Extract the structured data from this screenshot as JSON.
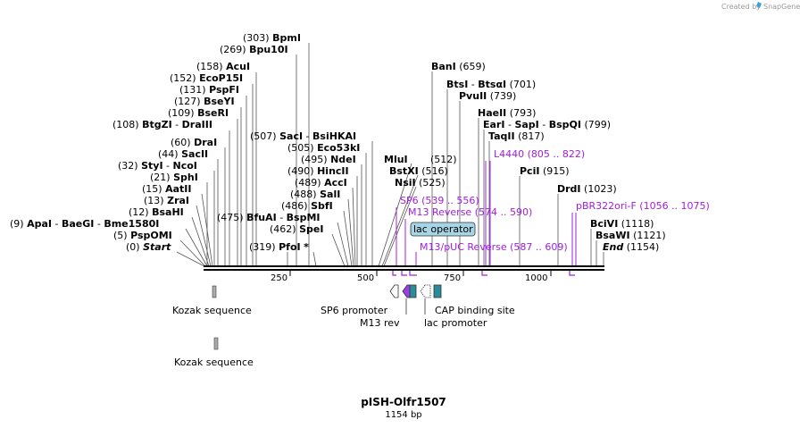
{
  "header": {
    "credit_prefix": "Created by",
    "credit_brand": "SnapGene"
  },
  "map": {
    "name": "pISH-Olfr1507",
    "length_label": "1154 bp",
    "ticks": [
      "250",
      "500",
      "750",
      "1000"
    ],
    "sites": [
      {
        "pos": "(303)",
        "names": [
          "BpmI"
        ]
      },
      {
        "pos": "(269)",
        "names": [
          "Bpu10I"
        ]
      },
      {
        "pos": "(158)",
        "names": [
          "AcuI"
        ]
      },
      {
        "pos": "(152)",
        "names": [
          "EcoP15I"
        ]
      },
      {
        "pos": "(131)",
        "names": [
          "PspFI"
        ]
      },
      {
        "pos": "(127)",
        "names": [
          "BseYI"
        ]
      },
      {
        "pos": "(109)",
        "names": [
          "BseRI"
        ]
      },
      {
        "pos": "(108)",
        "names": [
          "BtgZI",
          "DraIII"
        ]
      },
      {
        "pos": "(60)",
        "names": [
          "DraI"
        ]
      },
      {
        "pos": "(44)",
        "names": [
          "SacII"
        ]
      },
      {
        "pos": "(32)",
        "names": [
          "StyI",
          "NcoI"
        ]
      },
      {
        "pos": "(21)",
        "names": [
          "SphI"
        ]
      },
      {
        "pos": "(15)",
        "names": [
          "AatII"
        ]
      },
      {
        "pos": "(13)",
        "names": [
          "ZraI"
        ]
      },
      {
        "pos": "(12)",
        "names": [
          "BsaHI"
        ]
      },
      {
        "pos": "(9)",
        "names": [
          "ApaI",
          "BaeGI",
          "Bme1580I"
        ]
      },
      {
        "pos": "(5)",
        "names": [
          "PspOMI"
        ]
      },
      {
        "pos": "(0)",
        "names": [
          "Start"
        ]
      },
      {
        "pos": "(507)",
        "names": [
          "SacI",
          "BsiHKAI"
        ]
      },
      {
        "pos": "(505)",
        "names": [
          "Eco53kI"
        ]
      },
      {
        "pos": "(495)",
        "names": [
          "NdeI"
        ]
      },
      {
        "pos": "(490)",
        "names": [
          "HincII"
        ]
      },
      {
        "pos": "(489)",
        "names": [
          "AccI"
        ]
      },
      {
        "pos": "(488)",
        "names": [
          "SalI"
        ]
      },
      {
        "pos": "(486)",
        "names": [
          "SbfI"
        ]
      },
      {
        "pos": "(475)",
        "names": [
          "BfuAI",
          "BspMI"
        ]
      },
      {
        "pos": "(462)",
        "names": [
          "SpeI"
        ]
      },
      {
        "pos": "(319)",
        "names": [
          "PfoI",
          "*"
        ]
      },
      {
        "pos": "(659)",
        "names": [
          "BanI"
        ]
      },
      {
        "pos": "(701)",
        "names": [
          "BtsI",
          "BtsαI"
        ]
      },
      {
        "pos": "(739)",
        "names": [
          "PvuII"
        ]
      },
      {
        "pos": "(793)",
        "names": [
          "HaeII"
        ]
      },
      {
        "pos": "(799)",
        "names": [
          "EarI",
          "SapI",
          "BspQI"
        ]
      },
      {
        "pos": "(817)",
        "names": [
          "TaqII"
        ]
      },
      {
        "pos": "(512)",
        "names": [
          "MluI"
        ]
      },
      {
        "pos": "(516)",
        "names": [
          "BstXI"
        ]
      },
      {
        "pos": "(525)",
        "names": [
          "NsiI"
        ]
      },
      {
        "pos": "(915)",
        "names": [
          "PciI"
        ]
      },
      {
        "pos": "(1023)",
        "names": [
          "DrdI"
        ]
      },
      {
        "pos": "(1118)",
        "names": [
          "BciVI"
        ]
      },
      {
        "pos": "(1121)",
        "names": [
          "BsaWI"
        ]
      },
      {
        "pos": "(1154)",
        "names": [
          "End"
        ]
      }
    ],
    "primers": [
      {
        "name": "L4440",
        "range": "(805 .. 822)"
      },
      {
        "name": "SP6",
        "range": "(539 .. 556)"
      },
      {
        "name": "M13 Reverse",
        "range": "(574 .. 590)"
      },
      {
        "name": "M13/pUC Reverse",
        "range": "(587 .. 609)"
      },
      {
        "name": "pBR322ori-F",
        "range": "(1056 .. 1075)"
      }
    ],
    "lac_operator": "lac operator",
    "features": [
      "Kozak sequence",
      "Kozak sequence",
      "SP6 promoter",
      "M13 rev",
      "CAP binding site",
      "lac promoter"
    ],
    "colors": {
      "primer": "#a020d8",
      "lac_operator_fill": "#a6d6e6",
      "cap_site": "#2a8c9a",
      "m13_rev": "#9b3fe0"
    }
  }
}
